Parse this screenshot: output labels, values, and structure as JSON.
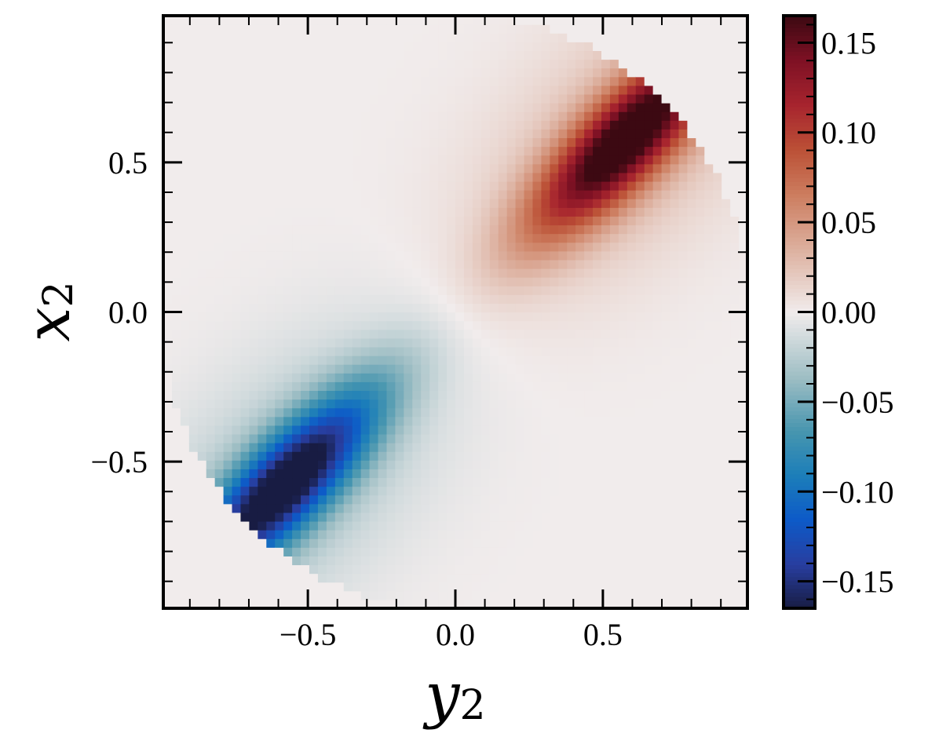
{
  "chart_data": {
    "type": "heatmap",
    "xlabel": "y",
    "xlabel_sub": "2",
    "ylabel": "x",
    "ylabel_sub": "2",
    "xlim": [
      -0.99,
      0.99
    ],
    "ylim": [
      -0.99,
      0.99
    ],
    "x_ticks": [
      -0.5,
      0.0,
      0.5
    ],
    "x_tick_labels": [
      "−0.5",
      "0.0",
      "0.5"
    ],
    "y_ticks": [
      -0.5,
      0.0,
      0.5
    ],
    "y_tick_labels": [
      "−0.5",
      "0.0",
      "0.5"
    ],
    "colorbar": {
      "range": [
        -0.165,
        0.165
      ],
      "ticks": [
        -0.15,
        -0.1,
        -0.05,
        0.0,
        0.05,
        0.1,
        0.15
      ],
      "tick_labels": [
        "−0.15",
        "−0.10",
        "−0.05",
        "0.00",
        "0.05",
        "0.10",
        "0.15"
      ],
      "colormap": "balance",
      "stops": [
        {
          "v": -1.0,
          "color": "#181c43"
        },
        {
          "v": -0.85,
          "color": "#283ea0"
        },
        {
          "v": -0.7,
          "color": "#0d5ac8"
        },
        {
          "v": -0.55,
          "color": "#1c7eb9"
        },
        {
          "v": -0.4,
          "color": "#4896af"
        },
        {
          "v": -0.22,
          "color": "#9ebec4"
        },
        {
          "v": 0.0,
          "color": "#f1ecec"
        },
        {
          "v": 0.22,
          "color": "#dcae9c"
        },
        {
          "v": 0.4,
          "color": "#cc7c5e"
        },
        {
          "v": 0.55,
          "color": "#bb5036"
        },
        {
          "v": 0.7,
          "color": "#a7242e"
        },
        {
          "v": 0.85,
          "color": "#7e1124"
        },
        {
          "v": 1.0,
          "color": "#3c0912"
        }
      ]
    },
    "peaks": [
      {
        "x": 0.58,
        "y": 0.58,
        "value": 0.165
      },
      {
        "x": -0.58,
        "y": -0.58,
        "value": -0.165
      }
    ],
    "grid": false
  }
}
